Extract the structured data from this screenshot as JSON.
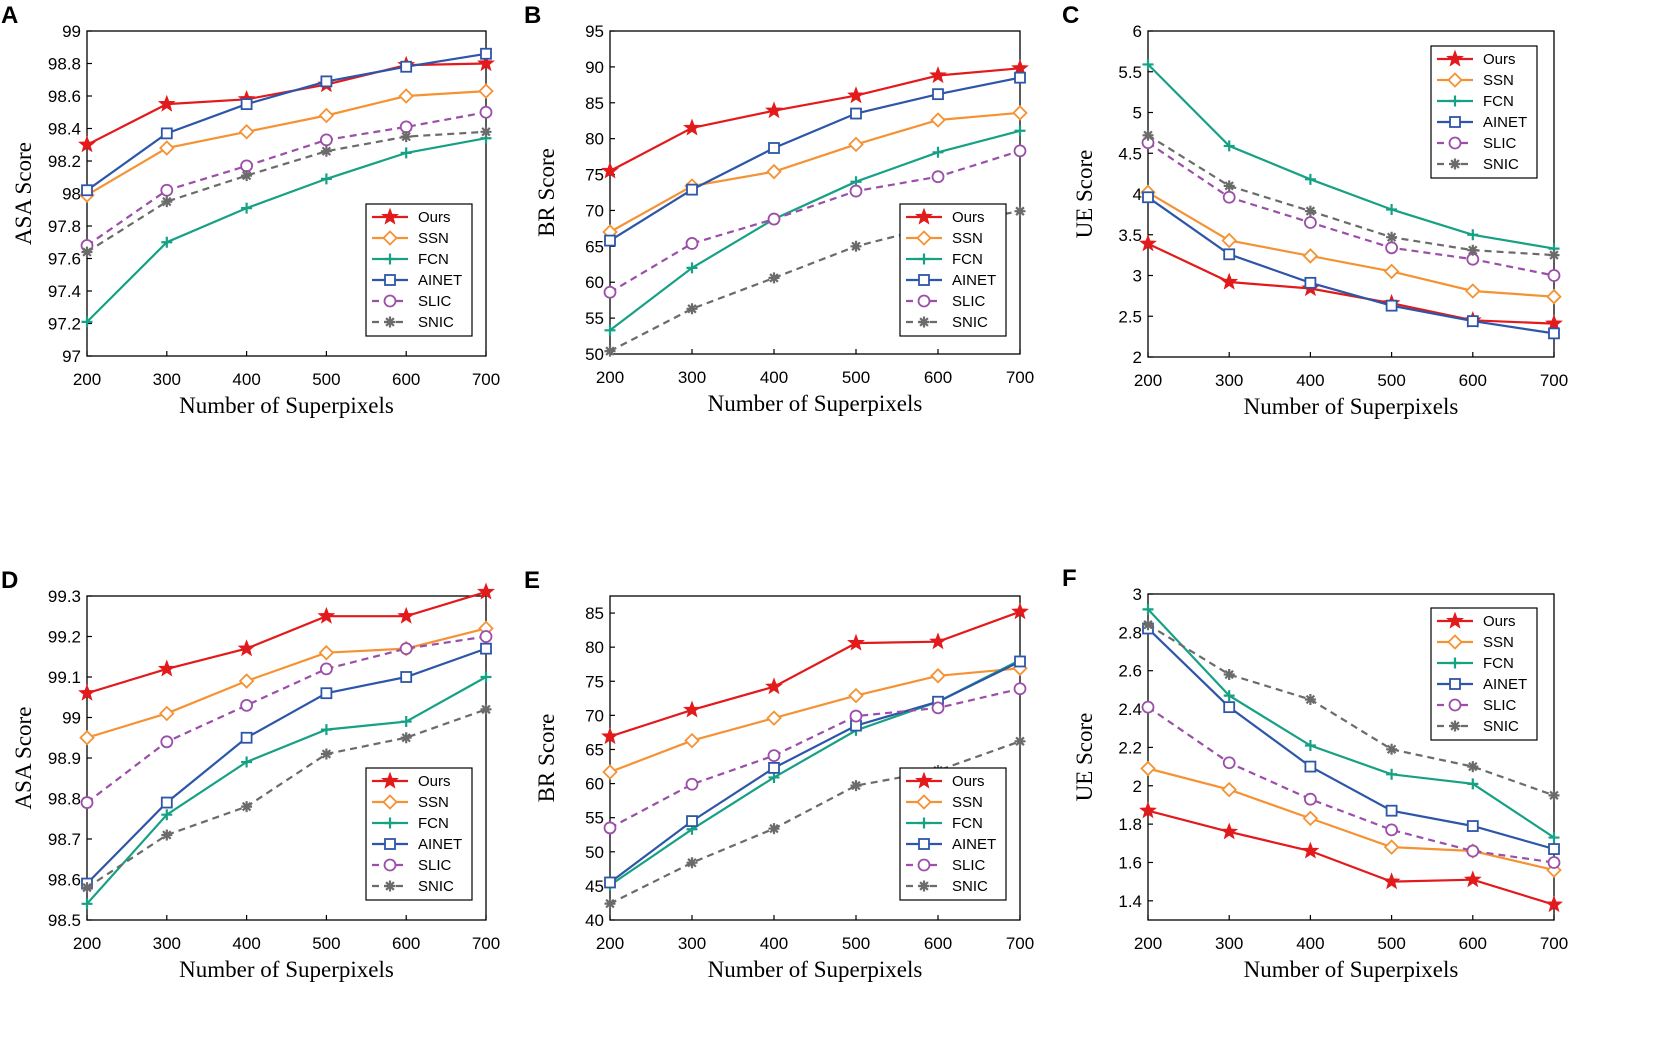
{
  "series_styles": {
    "Ours": {
      "color": "#e31a1c",
      "marker": "star",
      "dash": false
    },
    "SSN": {
      "color": "#f59233",
      "marker": "diamond",
      "dash": false
    },
    "FCN": {
      "color": "#17a184",
      "marker": "plus",
      "dash": false
    },
    "AINET": {
      "color": "#2d56a8",
      "marker": "square",
      "dash": false
    },
    "SLIC": {
      "color": "#9b4fa8",
      "marker": "circle",
      "dash": true
    },
    "SNIC": {
      "color": "#6b6b6b",
      "marker": "asterisk",
      "dash": true
    }
  },
  "chart_data": [
    {
      "panel": "A",
      "type": "line",
      "title": "",
      "xlabel": "Number of Superpixels",
      "ylabel": "ASA Score",
      "x": [
        200,
        300,
        400,
        500,
        600,
        700
      ],
      "xticks": [
        "200",
        "300",
        "400",
        "500",
        "600",
        "700"
      ],
      "ylim": [
        97,
        99
      ],
      "yticks": [
        "97",
        "97.2",
        "97.4",
        "97.6",
        "97.8",
        "98",
        "98.2",
        "98.4",
        "98.6",
        "98.8",
        "99"
      ],
      "legend": "bottom-right",
      "series": [
        {
          "name": "Ours",
          "values": [
            98.3,
            98.55,
            98.58,
            98.67,
            98.79,
            98.8
          ]
        },
        {
          "name": "SSN",
          "values": [
            97.99,
            98.28,
            98.38,
            98.48,
            98.6,
            98.63
          ]
        },
        {
          "name": "FCN",
          "values": [
            97.21,
            97.7,
            97.91,
            98.09,
            98.25,
            98.34
          ]
        },
        {
          "name": "AINET",
          "values": [
            98.02,
            98.37,
            98.55,
            98.69,
            98.78,
            98.86
          ]
        },
        {
          "name": "SLIC",
          "values": [
            97.68,
            98.02,
            98.17,
            98.33,
            98.41,
            98.5
          ]
        },
        {
          "name": "SNIC",
          "values": [
            97.64,
            97.95,
            98.11,
            98.26,
            98.35,
            98.38
          ]
        }
      ]
    },
    {
      "panel": "B",
      "type": "line",
      "title": "",
      "xlabel": "Number of Superpixels",
      "ylabel": "BR Score",
      "x": [
        200,
        300,
        400,
        500,
        600,
        700
      ],
      "xticks": [
        "200",
        "300",
        "400",
        "500",
        "600",
        "700"
      ],
      "ylim": [
        50,
        95
      ],
      "yticks": [
        "50",
        "55",
        "60",
        "65",
        "70",
        "75",
        "80",
        "85",
        "90",
        "95"
      ],
      "legend": "bottom-right",
      "series": [
        {
          "name": "Ours",
          "values": [
            75.5,
            81.5,
            83.9,
            86.0,
            88.8,
            89.8
          ]
        },
        {
          "name": "SSN",
          "values": [
            67.0,
            73.4,
            75.4,
            79.2,
            82.6,
            83.6
          ]
        },
        {
          "name": "FCN",
          "values": [
            53.3,
            62.0,
            68.8,
            74.0,
            78.1,
            81.1
          ]
        },
        {
          "name": "AINET",
          "values": [
            65.8,
            72.9,
            78.7,
            83.5,
            86.2,
            88.5
          ]
        },
        {
          "name": "SLIC",
          "values": [
            58.6,
            65.4,
            68.8,
            72.7,
            74.7,
            78.3
          ]
        },
        {
          "name": "SNIC",
          "values": [
            50.4,
            56.3,
            60.6,
            65.0,
            67.9,
            69.9
          ]
        }
      ]
    },
    {
      "panel": "C",
      "type": "line",
      "title": "",
      "xlabel": "Number of Superpixels",
      "ylabel": "UE Score",
      "x": [
        200,
        300,
        400,
        500,
        600,
        700
      ],
      "xticks": [
        "200",
        "300",
        "400",
        "500",
        "600",
        "700"
      ],
      "ylim": [
        2,
        6
      ],
      "yticks": [
        "2",
        "2.5",
        "3",
        "3.5",
        "4",
        "4.5",
        "5",
        "5.5",
        "6"
      ],
      "legend": "top-right",
      "series": [
        {
          "name": "Ours",
          "values": [
            3.39,
            2.92,
            2.84,
            2.66,
            2.45,
            2.41
          ]
        },
        {
          "name": "SSN",
          "values": [
            4.02,
            3.43,
            3.24,
            3.05,
            2.81,
            2.74
          ]
        },
        {
          "name": "FCN",
          "values": [
            5.59,
            4.59,
            4.18,
            3.81,
            3.5,
            3.33
          ]
        },
        {
          "name": "AINET",
          "values": [
            3.96,
            3.26,
            2.91,
            2.63,
            2.44,
            2.29
          ]
        },
        {
          "name": "SLIC",
          "values": [
            4.63,
            3.96,
            3.65,
            3.34,
            3.2,
            3.0
          ]
        },
        {
          "name": "SNIC",
          "values": [
            4.72,
            4.1,
            3.79,
            3.47,
            3.31,
            3.25
          ]
        }
      ]
    },
    {
      "panel": "D",
      "type": "line",
      "title": "",
      "xlabel": "Number of Superpixels",
      "ylabel": "ASA Score",
      "x": [
        200,
        300,
        400,
        500,
        600,
        700
      ],
      "xticks": [
        "200",
        "300",
        "400",
        "500",
        "600",
        "700"
      ],
      "ylim": [
        98.5,
        99.3
      ],
      "yticks": [
        "98.5",
        "98.6",
        "98.7",
        "98.8",
        "98.9",
        "99",
        "99.1",
        "99.2",
        "99.3"
      ],
      "legend": "bottom-right",
      "series": [
        {
          "name": "Ours",
          "values": [
            99.06,
            99.12,
            99.17,
            99.25,
            99.25,
            99.31
          ]
        },
        {
          "name": "SSN",
          "values": [
            98.95,
            99.01,
            99.09,
            99.16,
            99.17,
            99.22
          ]
        },
        {
          "name": "FCN",
          "values": [
            98.54,
            98.76,
            98.89,
            98.97,
            98.99,
            99.1
          ]
        },
        {
          "name": "AINET",
          "values": [
            98.59,
            98.79,
            98.95,
            99.06,
            99.1,
            99.17
          ]
        },
        {
          "name": "SLIC",
          "values": [
            98.79,
            98.94,
            99.03,
            99.12,
            99.17,
            99.2
          ]
        },
        {
          "name": "SNIC",
          "values": [
            98.58,
            98.71,
            98.78,
            98.91,
            98.95,
            99.02
          ]
        }
      ]
    },
    {
      "panel": "E",
      "type": "line",
      "title": "",
      "xlabel": "Number of Superpixels",
      "ylabel": "BR Score",
      "x": [
        200,
        300,
        400,
        500,
        600,
        700
      ],
      "xticks": [
        "200",
        "300",
        "400",
        "500",
        "600",
        "700"
      ],
      "ylim": [
        40,
        87.5
      ],
      "yticks": [
        "40",
        "45",
        "50",
        "55",
        "60",
        "65",
        "70",
        "75",
        "80",
        "85"
      ],
      "legend": "bottom-right",
      "series": [
        {
          "name": "Ours",
          "values": [
            66.9,
            70.8,
            74.2,
            80.6,
            80.8,
            85.2
          ]
        },
        {
          "name": "SSN",
          "values": [
            61.7,
            66.3,
            69.6,
            72.9,
            75.8,
            76.9
          ]
        },
        {
          "name": "FCN",
          "values": [
            45.1,
            53.3,
            60.9,
            67.8,
            72.0,
            78.1
          ]
        },
        {
          "name": "AINET",
          "values": [
            45.5,
            54.5,
            62.3,
            68.5,
            72.0,
            77.9
          ]
        },
        {
          "name": "SLIC",
          "values": [
            53.5,
            59.9,
            64.1,
            69.9,
            71.1,
            73.9
          ]
        },
        {
          "name": "SNIC",
          "values": [
            42.4,
            48.4,
            53.4,
            59.7,
            61.9,
            66.2
          ]
        }
      ]
    },
    {
      "panel": "F",
      "type": "line",
      "title": "",
      "xlabel": "Number of Superpixels",
      "ylabel": "UE Score",
      "x": [
        200,
        300,
        400,
        500,
        600,
        700
      ],
      "xticks": [
        "200",
        "300",
        "400",
        "500",
        "600",
        "700"
      ],
      "ylim": [
        1.3,
        3
      ],
      "yticks": [
        "1.4",
        "1.6",
        "1.8",
        "2",
        "2.2",
        "2.4",
        "2.6",
        "2.8",
        "3"
      ],
      "legend": "top-right",
      "series": [
        {
          "name": "Ours",
          "values": [
            1.87,
            1.76,
            1.66,
            1.5,
            1.51,
            1.38
          ]
        },
        {
          "name": "SSN",
          "values": [
            2.09,
            1.98,
            1.83,
            1.68,
            1.66,
            1.56
          ]
        },
        {
          "name": "FCN",
          "values": [
            2.92,
            2.47,
            2.21,
            2.06,
            2.01,
            1.73
          ]
        },
        {
          "name": "AINET",
          "values": [
            2.82,
            2.41,
            2.1,
            1.87,
            1.79,
            1.67
          ]
        },
        {
          "name": "SLIC",
          "values": [
            2.41,
            2.12,
            1.93,
            1.77,
            1.66,
            1.6
          ]
        },
        {
          "name": "SNIC",
          "values": [
            2.84,
            2.58,
            2.45,
            2.19,
            2.1,
            1.95
          ]
        }
      ]
    }
  ]
}
